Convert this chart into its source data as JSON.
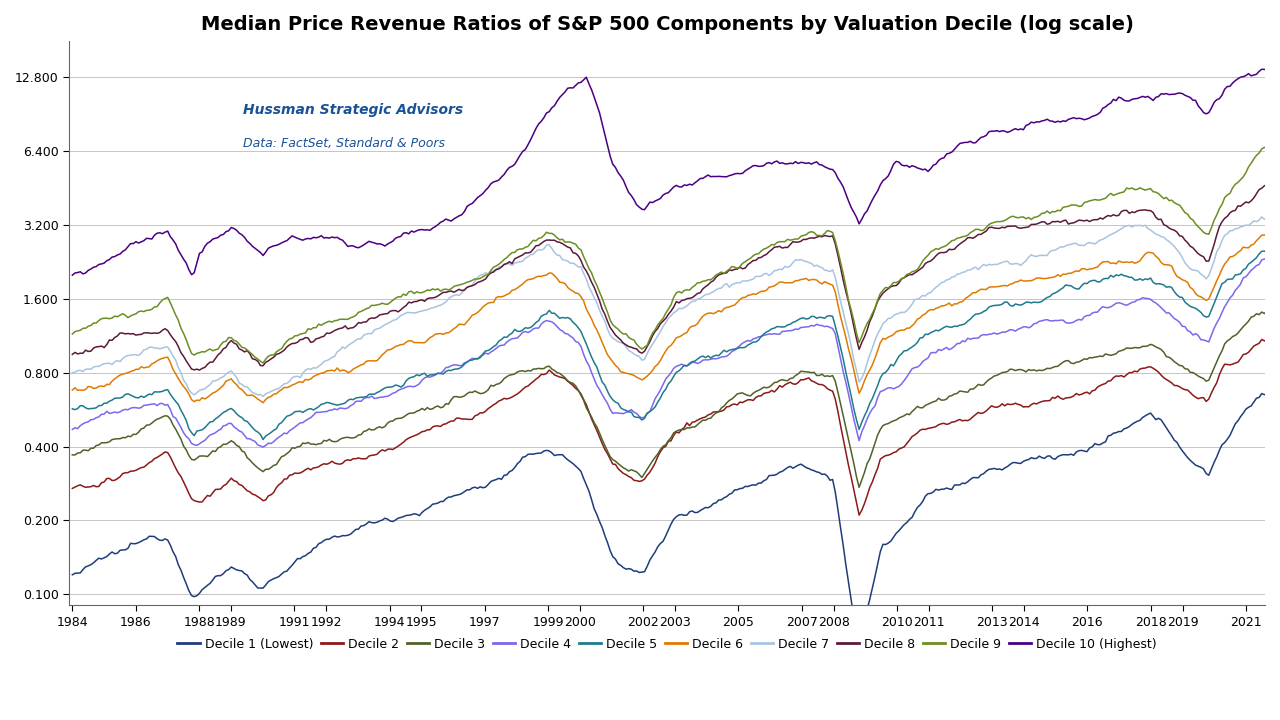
{
  "title": "Median Price Revenue Ratios of S&P 500 Components by Valuation Decile (log scale)",
  "annotation_line1": "Hussman Strategic Advisors",
  "annotation_line2": "Data: FactSet, Standard & Poors",
  "ylim_bottom": 0.09,
  "ylim_top": 18.0,
  "yticks": [
    0.1,
    0.2,
    0.4,
    0.8,
    1.6,
    3.2,
    6.4,
    12.8
  ],
  "ytick_labels": [
    "0.100",
    "0.200",
    "0.400",
    "0.800",
    "1.600",
    "3.200",
    "6.400",
    "12.800"
  ],
  "year_start": 1984,
  "year_end": 2021,
  "xtick_years": [
    1984,
    1986,
    1988,
    1989,
    1991,
    1992,
    1994,
    1995,
    1997,
    1999,
    2000,
    2002,
    2003,
    2005,
    2007,
    2008,
    2010,
    2011,
    2013,
    2014,
    2016,
    2018,
    2019,
    2021
  ],
  "decile_colors": [
    "#1F3D7A",
    "#8B1A1A",
    "#4F6228",
    "#7B68EE",
    "#1F7A8C",
    "#E07B00",
    "#A8C4E0",
    "#5C1A3A",
    "#6B8E23",
    "#4B0082"
  ],
  "decile_labels": [
    "Decile 1 (Lowest)",
    "Decile 2",
    "Decile 3",
    "Decile 4",
    "Decile 5",
    "Decile 6",
    "Decile 7",
    "Decile 8",
    "Decile 9",
    "Decile 10 (Highest)"
  ],
  "background_color": "#FFFFFF",
  "grid_color": "#BBBBBB",
  "title_fontsize": 14,
  "legend_fontsize": 9,
  "tick_fontsize": 9
}
